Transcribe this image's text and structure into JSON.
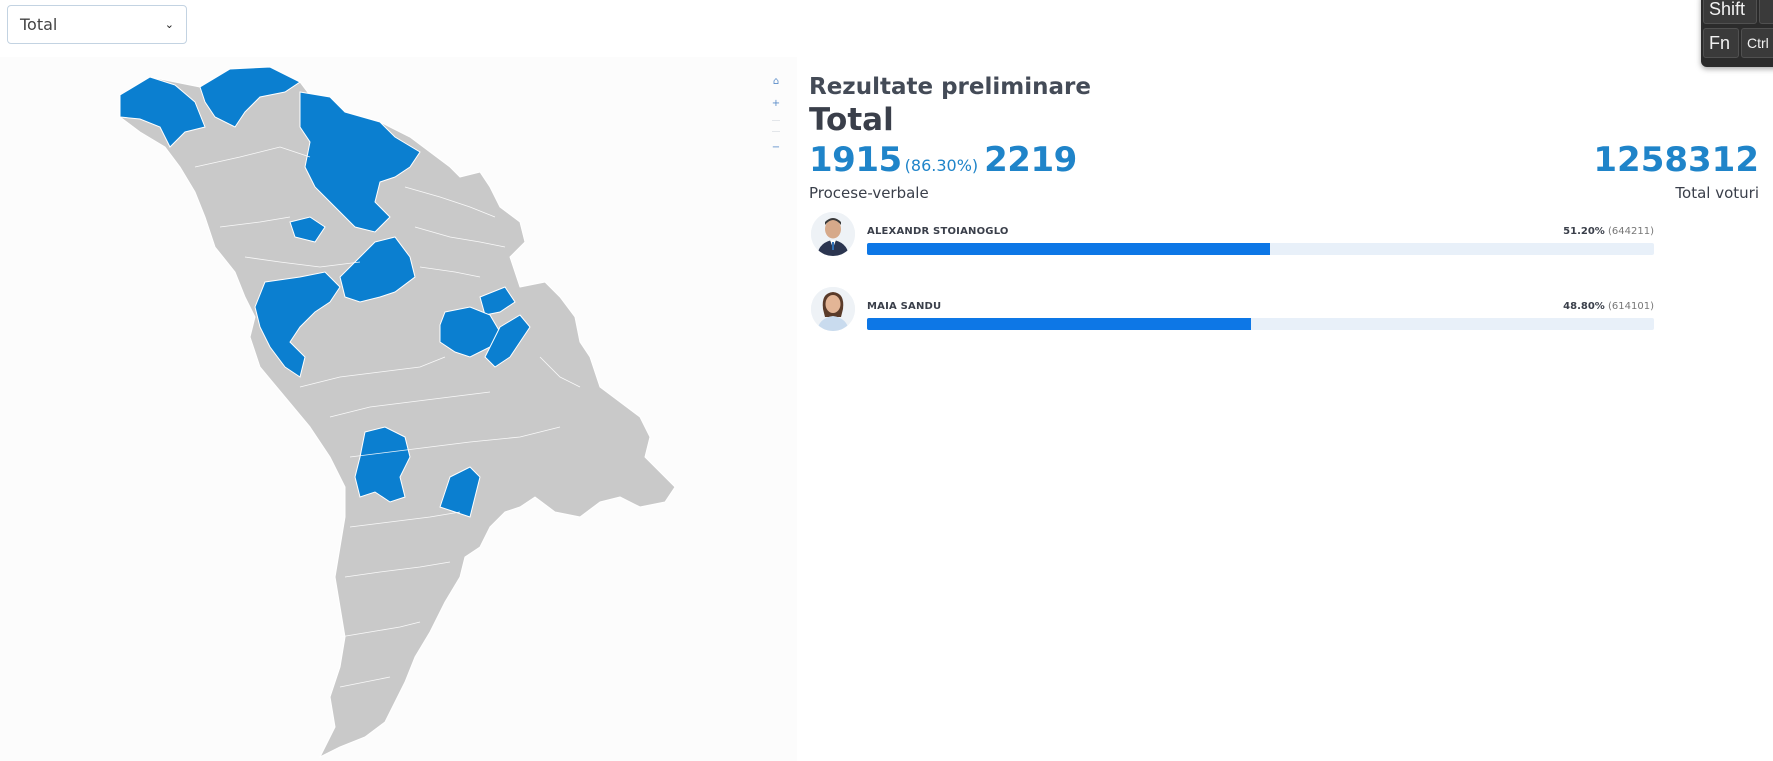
{
  "filter": {
    "selected": "Total"
  },
  "results": {
    "subtitle": "Rezultate preliminare",
    "title": "Total",
    "processed": "1915",
    "processed_pct": "(86.30%)",
    "total_protocols": "2219",
    "protocols_label": "Procese-verbale",
    "total_votes": "1258312",
    "votes_label": "Total voturi",
    "candidates": [
      {
        "name": "ALEXANDR STOIANOGLO",
        "percent_label": "51.20%",
        "votes_label": "(644211)",
        "share": 51.2,
        "color": "#0d77e6"
      },
      {
        "name": "MAIA SANDU",
        "percent_label": "48.80%",
        "votes_label": "(614101)",
        "share": 48.8,
        "color": "#0d77e6"
      }
    ]
  },
  "map": {
    "region_color_default": "#c9c9c9",
    "region_color_highlight": "#0b7fd0",
    "zoom_controls": [
      "home-icon",
      "zoom-in-icon",
      "zoom-out-icon"
    ]
  },
  "keyboard": {
    "keys": [
      "Shift",
      "Fn",
      "Ctrl"
    ]
  }
}
